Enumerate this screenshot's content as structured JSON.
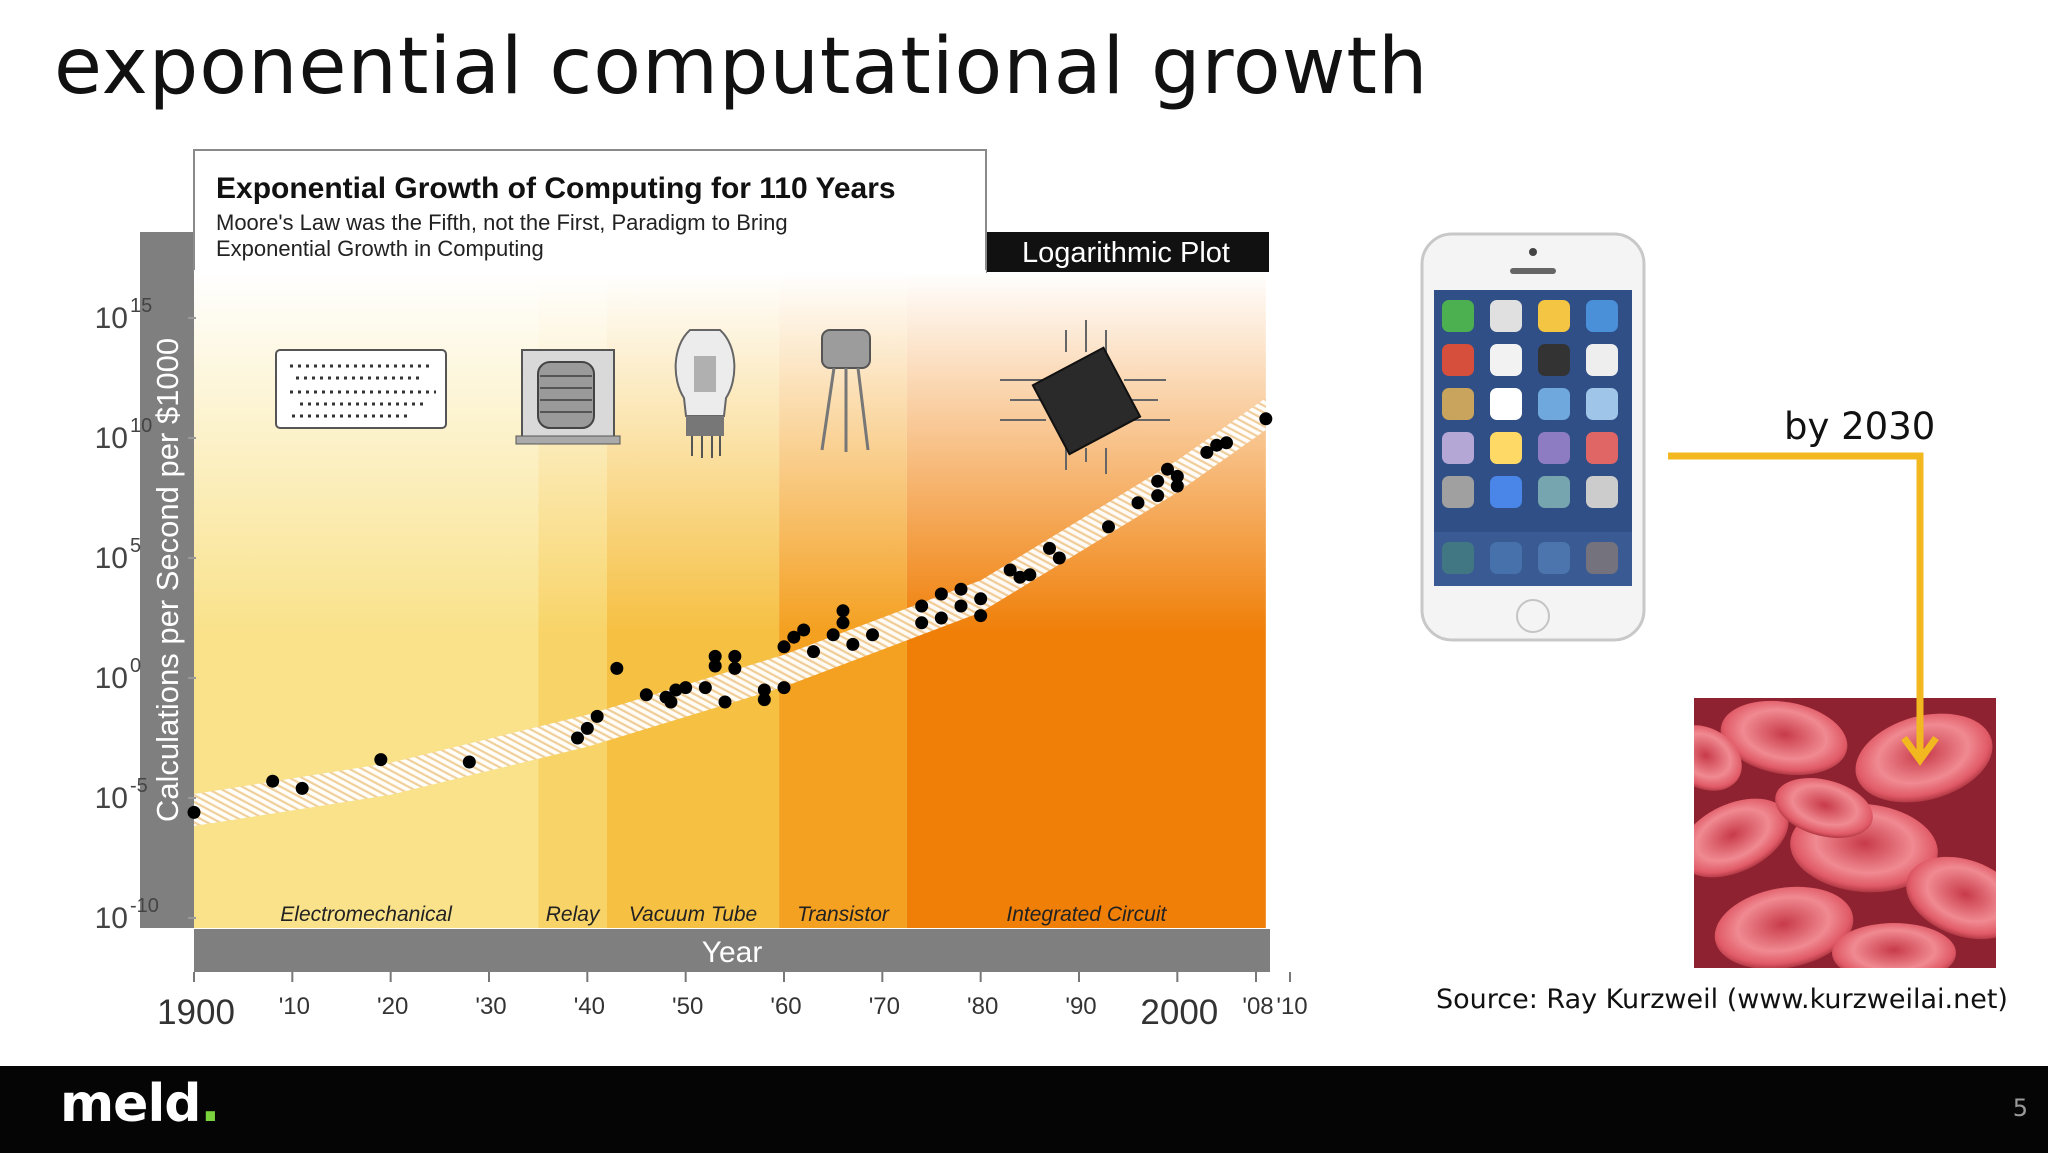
{
  "slide": {
    "title": "exponential computational growth",
    "annotation": "by 2030",
    "source": "Source: Ray Kurzweil (www.kurzweilai.net)",
    "page_number": "5"
  },
  "footer": {
    "logo_text": "meld",
    "logo_dot": ".",
    "logo_accent": "#7ad33c"
  },
  "colors": {
    "arrow": "#f2b81f",
    "band_dark": "#7f7f7f",
    "point": "#000000"
  },
  "icons": [
    "punch-card-icon",
    "relay-icon",
    "vacuum-tube-icon",
    "transistor-icon",
    "integrated-circuit-icon",
    "smartphone-image",
    "red-blood-cells-image"
  ],
  "chart_data": {
    "type": "scatter",
    "title": "Exponential Growth of Computing for 110 Years",
    "subtitle_lines": [
      "Moore's Law was the Fifth, not the First, Paradigm to Bring",
      "Exponential Growth in Computing"
    ],
    "plot_label": "Logarithmic Plot",
    "xlabel": "Year",
    "ylabel": "Calculations per Second per $1000",
    "y_scale": "log10",
    "xlim": [
      1900,
      2010
    ],
    "ylim_exponent": [
      -10,
      15
    ],
    "x_ticks": [
      {
        "value": 1900,
        "label": "1900",
        "big": true
      },
      {
        "value": 1910,
        "label": "'10"
      },
      {
        "value": 1920,
        "label": "'20"
      },
      {
        "value": 1930,
        "label": "'30"
      },
      {
        "value": 1940,
        "label": "'40"
      },
      {
        "value": 1950,
        "label": "'50"
      },
      {
        "value": 1960,
        "label": "'60"
      },
      {
        "value": 1970,
        "label": "'70"
      },
      {
        "value": 1980,
        "label": "'80"
      },
      {
        "value": 1990,
        "label": "'90"
      },
      {
        "value": 2000,
        "label": "2000",
        "big": true
      },
      {
        "value": 2008,
        "label": "'08"
      },
      {
        "value": 2010,
        "label": "'10"
      }
    ],
    "y_ticks": [
      {
        "exp": 15,
        "label": "10",
        "sup": "15"
      },
      {
        "exp": 10,
        "label": "10",
        "sup": "10"
      },
      {
        "exp": 5,
        "label": "10",
        "sup": "5"
      },
      {
        "exp": 0,
        "label": "10",
        "sup": "0"
      },
      {
        "exp": -5,
        "label": "10",
        "sup": "-5"
      },
      {
        "exp": -10,
        "label": "10",
        "sup": "-10"
      }
    ],
    "eras": [
      {
        "name": "Electromechanical",
        "start": 1900,
        "end": 1935,
        "color": "#f9e28a"
      },
      {
        "name": "Relay",
        "start": 1935,
        "end": 1942,
        "color": "#f8d468"
      },
      {
        "name": "Vacuum Tube",
        "start": 1942,
        "end": 1959.5,
        "color": "#f6c042"
      },
      {
        "name": "Transistor",
        "start": 1959.5,
        "end": 1972.5,
        "color": "#f4a020"
      },
      {
        "name": "Integrated Circuit",
        "start": 1972.5,
        "end": 2009,
        "color": "#f07f08"
      }
    ],
    "trend": [
      [
        1900,
        -5.5
      ],
      [
        1920,
        -4.2
      ],
      [
        1940,
        -2.2
      ],
      [
        1960,
        0.3
      ],
      [
        1980,
        3.4
      ],
      [
        2000,
        8.4
      ],
      [
        2009,
        11.0
      ]
    ],
    "points": [
      [
        1900,
        -5.6
      ],
      [
        1908,
        -4.3
      ],
      [
        1911,
        -4.6
      ],
      [
        1919,
        -3.4
      ],
      [
        1928,
        -3.5
      ],
      [
        1939,
        -2.5
      ],
      [
        1940,
        -2.1
      ],
      [
        1941,
        -1.6
      ],
      [
        1943,
        0.4
      ],
      [
        1946,
        -0.7
      ],
      [
        1948,
        -0.8
      ],
      [
        1948.5,
        -1.0
      ],
      [
        1949,
        -0.5
      ],
      [
        1950,
        -0.4
      ],
      [
        1952,
        -0.4
      ],
      [
        1953,
        0.5
      ],
      [
        1953,
        0.9
      ],
      [
        1954,
        -1.0
      ],
      [
        1955,
        0.4
      ],
      [
        1955,
        0.9
      ],
      [
        1958,
        -0.9
      ],
      [
        1958,
        -0.5
      ],
      [
        1960,
        -0.4
      ],
      [
        1960,
        1.3
      ],
      [
        1961,
        1.7
      ],
      [
        1962,
        2.0
      ],
      [
        1963,
        1.1
      ],
      [
        1965,
        1.8
      ],
      [
        1966,
        2.3
      ],
      [
        1966,
        2.8
      ],
      [
        1967,
        1.4
      ],
      [
        1969,
        1.8
      ],
      [
        1974,
        3.0
      ],
      [
        1974,
        2.3
      ],
      [
        1976,
        3.5
      ],
      [
        1976,
        2.5
      ],
      [
        1978,
        3.7
      ],
      [
        1978,
        3.0
      ],
      [
        1980,
        2.6
      ],
      [
        1980,
        3.3
      ],
      [
        1983,
        4.5
      ],
      [
        1984,
        4.2
      ],
      [
        1985,
        4.3
      ],
      [
        1987,
        5.4
      ],
      [
        1988,
        5.0
      ],
      [
        1993,
        6.3
      ],
      [
        1996,
        7.3
      ],
      [
        1998,
        7.6
      ],
      [
        1998,
        8.2
      ],
      [
        1999,
        8.7
      ],
      [
        2000,
        8.0
      ],
      [
        2000,
        8.4
      ],
      [
        2003,
        9.4
      ],
      [
        2004,
        9.7
      ],
      [
        2005,
        9.8
      ],
      [
        2009,
        10.8
      ]
    ]
  }
}
